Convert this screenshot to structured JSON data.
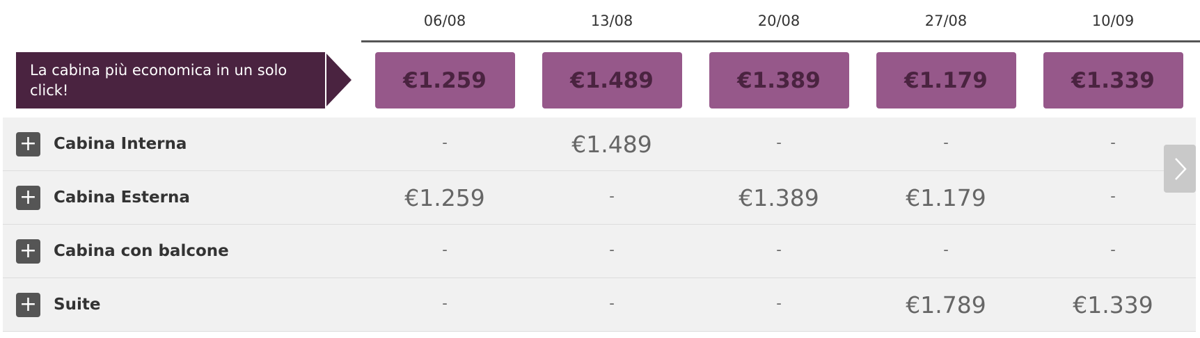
{
  "header": {
    "dates": [
      "06/08",
      "13/08",
      "20/08",
      "27/08",
      "10/09"
    ]
  },
  "banner": {
    "text": "La cabina più economica in un solo click!"
  },
  "best_prices": [
    "€1.259",
    "€1.489",
    "€1.389",
    "€1.179",
    "€1.339"
  ],
  "rows": [
    {
      "name": "Cabina Interna",
      "cells": [
        "-",
        "€1.489",
        "-",
        "-",
        "-"
      ]
    },
    {
      "name": "Cabina Esterna",
      "cells": [
        "€1.259",
        "-",
        "€1.389",
        "€1.179",
        "-"
      ]
    },
    {
      "name": "Cabina con balcone",
      "cells": [
        "-",
        "-",
        "-",
        "-",
        "-"
      ]
    },
    {
      "name": "Suite",
      "cells": [
        "-",
        "-",
        "-",
        "€1.789",
        "€1.339"
      ]
    }
  ]
}
